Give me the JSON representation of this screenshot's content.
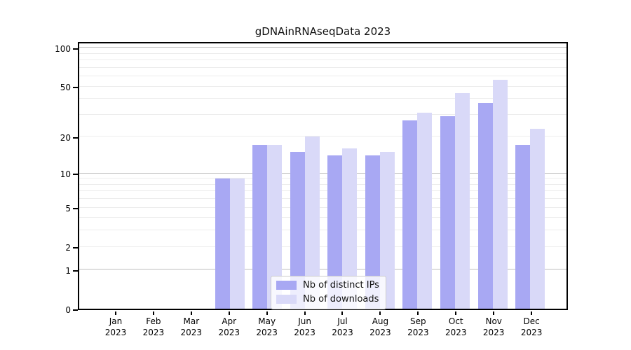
{
  "chart_data": {
    "type": "bar",
    "title": "gDNAinRNAseqData 2023",
    "categories": [
      "Jan 2023",
      "Feb 2023",
      "Mar 2023",
      "Apr 2023",
      "May 2023",
      "Jun 2023",
      "Jul 2023",
      "Aug 2023",
      "Sep 2023",
      "Oct 2023",
      "Nov 2023",
      "Dec 2023"
    ],
    "month_labels": [
      "Jan",
      "Feb",
      "Mar",
      "Apr",
      "May",
      "Jun",
      "Jul",
      "Aug",
      "Sep",
      "Oct",
      "Nov",
      "Dec"
    ],
    "year_label": "2023",
    "series": [
      {
        "name": "Nb of distinct IPs",
        "color": "#a8a8f3",
        "values": [
          0,
          0,
          0,
          9,
          17,
          15,
          14,
          14,
          27,
          29,
          37,
          17
        ]
      },
      {
        "name": "Nb of downloads",
        "color": "#d9d9f8",
        "values": [
          0,
          0,
          0,
          9,
          17,
          20,
          16,
          15,
          31,
          44,
          56,
          23
        ]
      }
    ],
    "xlabel": "",
    "ylabel": "",
    "yscale": "log1p",
    "ylim": [
      0,
      113
    ],
    "yticks": [
      100,
      50,
      20,
      10,
      5,
      2,
      1,
      0
    ],
    "gridlines_minor": [
      2,
      3,
      4,
      5,
      6,
      7,
      8,
      9,
      20,
      30,
      40,
      50,
      60,
      70,
      80,
      90
    ],
    "gridlines_major": [
      1,
      10,
      100
    ],
    "grid": true,
    "legend_position": "lower center"
  },
  "colors": {
    "spine": "#000000",
    "grid_major": "#bfbfbf",
    "grid_minor": "#ececec",
    "background": "#ffffff"
  }
}
